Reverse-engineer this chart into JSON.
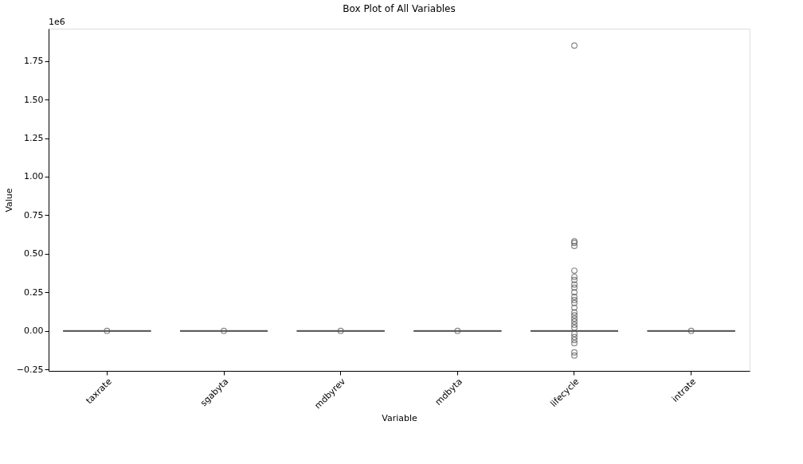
{
  "chart_data": {
    "type": "box",
    "title": "Box Plot of All Variables",
    "xlabel": "Variable",
    "ylabel": "Value",
    "annotations": [
      "1e6"
    ],
    "categories": [
      "taxrate",
      "sgabyta",
      "mdbyrev",
      "mdbyta",
      "lifecycle",
      "intrate"
    ],
    "color": "#555555",
    "boxes": [
      {
        "low": 0,
        "q1": 0,
        "median": 0,
        "q3": 0,
        "high": 0,
        "outliers": [
          0.0
        ]
      },
      {
        "low": 0,
        "q1": 0,
        "median": 0,
        "q3": 0,
        "high": 0,
        "outliers": [
          0.0
        ]
      },
      {
        "low": 0,
        "q1": 0,
        "median": 0,
        "q3": 0,
        "high": 0,
        "outliers": [
          0.0
        ]
      },
      {
        "low": 0,
        "q1": 0,
        "median": 0,
        "q3": 0,
        "high": 0,
        "outliers": [
          0.0
        ]
      },
      {
        "low": 0,
        "q1": 0,
        "median": 0,
        "q3": 0,
        "high": 0,
        "outliers": [
          1.85,
          0.58,
          0.57,
          0.55,
          0.39,
          0.35,
          0.33,
          0.3,
          0.28,
          0.25,
          0.22,
          0.2,
          0.18,
          0.15,
          0.12,
          0.1,
          0.08,
          0.06,
          0.04,
          0.02,
          -0.02,
          -0.04,
          -0.06,
          -0.08,
          -0.14,
          -0.16
        ]
      },
      {
        "low": 0,
        "q1": 0,
        "median": 0,
        "q3": 0,
        "high": 0,
        "outliers": [
          0.0
        ]
      }
    ],
    "ylim": [
      -0.26,
      1.96
    ],
    "yticks": [
      {
        "value": -0.25,
        "label": "−0.25"
      },
      {
        "value": 0,
        "label": "0.00"
      },
      {
        "value": 0.25,
        "label": "0.25"
      },
      {
        "value": 0.5,
        "label": "0.50"
      },
      {
        "value": 0.75,
        "label": "0.75"
      },
      {
        "value": 1,
        "label": "1.00"
      },
      {
        "value": 1.25,
        "label": "1.25"
      },
      {
        "value": 1.5,
        "label": "1.50"
      },
      {
        "value": 1.75,
        "label": "1.75"
      }
    ],
    "grid": false
  }
}
